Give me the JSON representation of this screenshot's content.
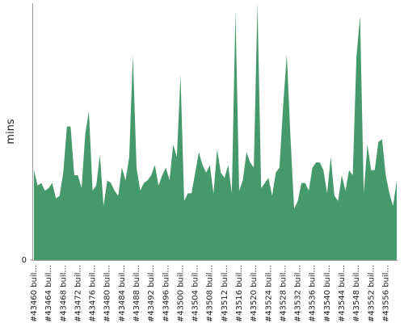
{
  "chart_data": {
    "type": "area",
    "y_label": "mins",
    "color": "#46996a",
    "ylim": [
      0,
      100
    ],
    "yticks": [
      0
    ],
    "categories": [
      "#43460 buil...",
      null,
      null,
      null,
      "#43464 buil...",
      null,
      null,
      null,
      "#43468 buil...",
      null,
      null,
      null,
      "#43472 buil...",
      null,
      null,
      null,
      "#43476 buil...",
      null,
      null,
      null,
      "#43480 buil...",
      null,
      null,
      null,
      "#43484 buil...",
      null,
      null,
      null,
      "#43488 buil...",
      null,
      null,
      null,
      "#43492 buil...",
      null,
      null,
      null,
      "#43496 buil...",
      null,
      null,
      null,
      "#43500 buil...",
      null,
      null,
      null,
      "#43504 buil...",
      null,
      null,
      null,
      "#43508 buil...",
      null,
      null,
      null,
      "#43512 buil...",
      null,
      null,
      null,
      "#43516 buil...",
      null,
      null,
      null,
      "#43520 buil...",
      null,
      null,
      null,
      "#43524 buil...",
      null,
      null,
      null,
      "#43528 buil...",
      null,
      null,
      null,
      "#43532 buil...",
      null,
      null,
      null,
      "#43536 buil...",
      null,
      null,
      null,
      "#43540 buil...",
      null,
      null,
      null,
      "#43544 buil...",
      null,
      null,
      null,
      "#43548 buil...",
      null,
      null,
      null,
      "#43552 buil...",
      null,
      null,
      null,
      "#43556 buil...",
      null,
      null,
      null
    ],
    "values": [
      35,
      29,
      30,
      27,
      28,
      30,
      24,
      25,
      34,
      52,
      52,
      33,
      33,
      28,
      49,
      58,
      27,
      29,
      41,
      21,
      31,
      30,
      27,
      25,
      36,
      31,
      40,
      80,
      36,
      27,
      30,
      31,
      33,
      37,
      29,
      33,
      36,
      31,
      45,
      40,
      72,
      23,
      26,
      26,
      34,
      42,
      37,
      34,
      37,
      26,
      43,
      34,
      32,
      37,
      26,
      97,
      27,
      31,
      42,
      38,
      36,
      100,
      28,
      30,
      32,
      25,
      34,
      36,
      60,
      80,
      48,
      20,
      23,
      30,
      30,
      27,
      36,
      38,
      38,
      35,
      26,
      40,
      25,
      23,
      33,
      27,
      35,
      33,
      79,
      95,
      26,
      45,
      35,
      35,
      46,
      47,
      33,
      26,
      21,
      31
    ]
  }
}
